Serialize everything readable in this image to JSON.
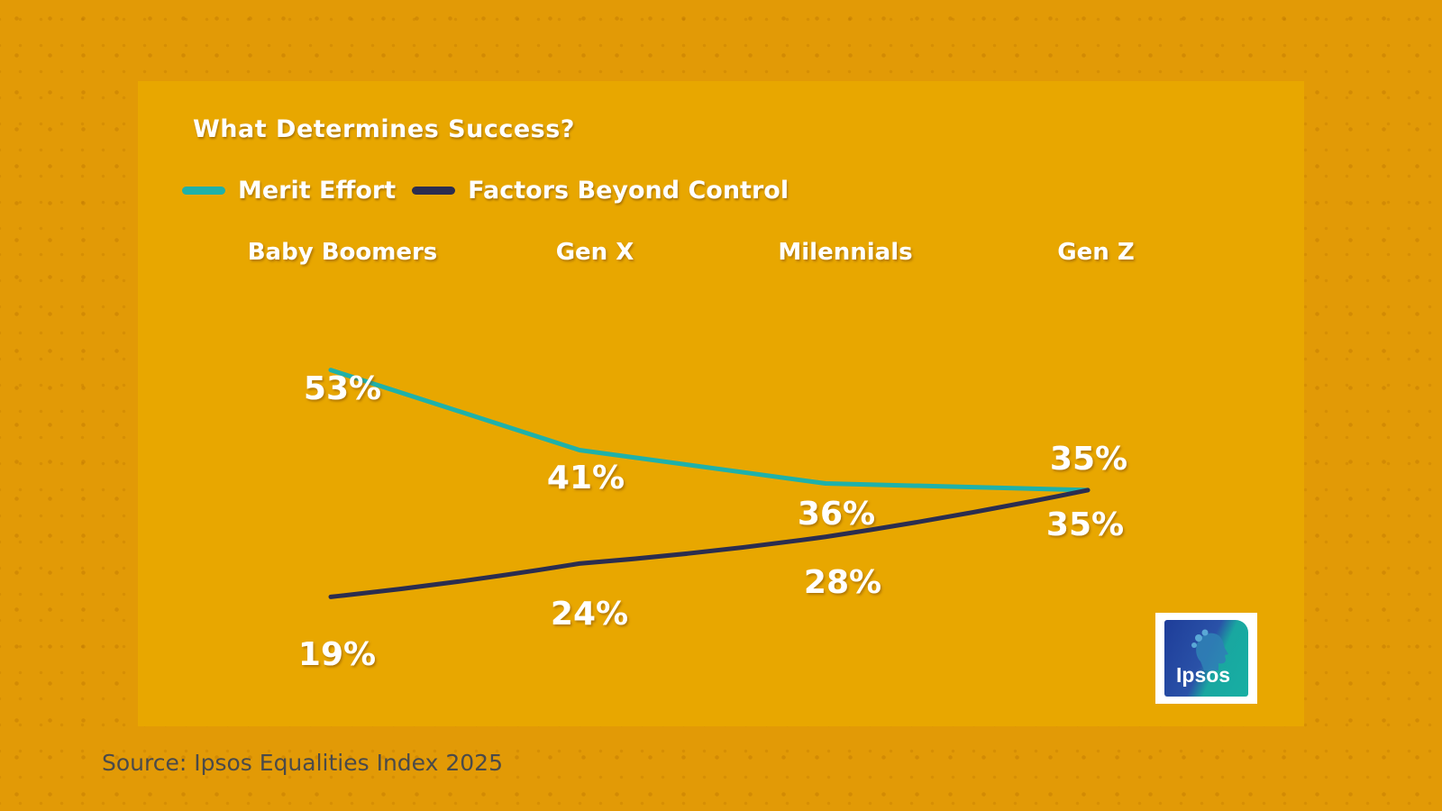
{
  "chart_data": {
    "type": "line",
    "title": "What Determines Success?",
    "categories": [
      "Baby Boomers",
      "Gen X",
      "Milennials",
      "Gen Z"
    ],
    "series": [
      {
        "name": "Merit Effort",
        "color": "#1FB1A9",
        "values": [
          53,
          41,
          36,
          35
        ],
        "labels": [
          "53%",
          "41%",
          "36%",
          "35%"
        ]
      },
      {
        "name": "Factors Beyond Control",
        "color": "#2B2D4F",
        "values": [
          19,
          24,
          28,
          35
        ],
        "labels": [
          "19%",
          "24%",
          "28%",
          "35%"
        ]
      }
    ],
    "ylim": [
      15,
      57
    ],
    "xlabel": "",
    "ylabel": "",
    "grid": false,
    "legend_position": "top-left"
  },
  "source": "Source: Ipsos Equalities Index 2025",
  "logo": {
    "text": "Ipsos",
    "icon": "ipsos-head-icon"
  },
  "colors": {
    "background": "#E29A06",
    "panel": "#E8A700",
    "text": "#ffffff"
  }
}
